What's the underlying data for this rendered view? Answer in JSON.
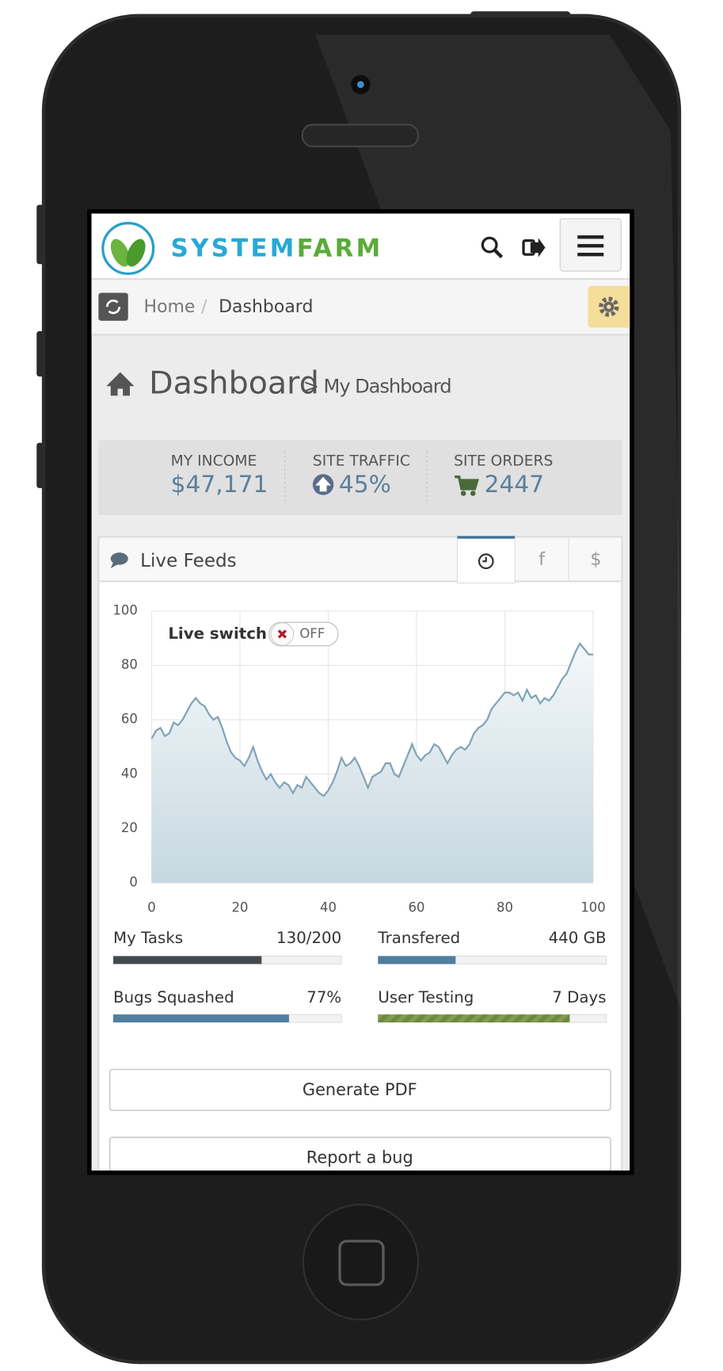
{
  "header": {
    "brand": [
      "SYSTEM",
      "FARM"
    ]
  },
  "breadcrumb": [
    "Home",
    "Dashboard"
  ],
  "breadcrumb_separator": "/",
  "page_title": "Dashboard",
  "page_subtitle": "> My Dashboard",
  "stats": [
    {
      "label": "MY INCOME",
      "value": "$47,171"
    },
    {
      "label": "SITE TRAFFIC",
      "value": "45%"
    },
    {
      "label": "SITE ORDERS",
      "value": "2447"
    }
  ],
  "panel": {
    "title": "Live Feeds",
    "tabs": [
      "f",
      "$"
    ]
  },
  "chart_data": {
    "type": "area",
    "x": [
      0,
      1,
      2,
      3,
      4,
      5,
      6,
      7,
      8,
      9,
      10,
      11,
      12,
      13,
      14,
      15,
      16,
      17,
      18,
      19,
      20,
      21,
      22,
      23,
      24,
      25,
      26,
      27,
      28,
      29,
      30,
      31,
      32,
      33,
      34,
      35,
      36,
      37,
      38,
      39,
      40,
      41,
      42,
      43,
      44,
      45,
      46,
      47,
      48,
      49,
      50,
      51,
      52,
      53,
      54,
      55,
      56,
      57,
      58,
      59,
      60,
      61,
      62,
      63,
      64,
      65,
      66,
      67,
      68,
      69,
      70,
      71,
      72,
      73,
      74,
      75,
      76,
      77,
      78,
      79,
      80,
      81,
      82,
      83,
      84,
      85,
      86,
      87,
      88,
      89,
      90,
      91,
      92,
      93,
      94,
      95,
      96,
      97,
      98,
      99,
      100
    ],
    "values": [
      53,
      56,
      57,
      54,
      55,
      59,
      58,
      60,
      63,
      66,
      68,
      66,
      65,
      62,
      60,
      61,
      57,
      52,
      48,
      46,
      45,
      43,
      46,
      50,
      45,
      41,
      38,
      40,
      37,
      35,
      37,
      36,
      33,
      36,
      35,
      39,
      37,
      35,
      33,
      32,
      34,
      37,
      41,
      46,
      43,
      44,
      46,
      43,
      39,
      35,
      39,
      40,
      41,
      44,
      44,
      40,
      39,
      43,
      47,
      51,
      47,
      45,
      47,
      48,
      51,
      50,
      47,
      44,
      47,
      49,
      50,
      49,
      51,
      55,
      57,
      58,
      60,
      64,
      66,
      68,
      70,
      70,
      69,
      70,
      67,
      71,
      68,
      69,
      66,
      68,
      67,
      69,
      72,
      75,
      77,
      81,
      85,
      88,
      86,
      84,
      84
    ],
    "xlim": [
      0,
      100
    ],
    "ylim": [
      0,
      100
    ],
    "xticks": [
      0,
      20,
      40,
      60,
      80,
      100
    ],
    "yticks": [
      0,
      20,
      40,
      60,
      80,
      100
    ],
    "grid": true,
    "color": "#7fa3b8",
    "annotation": "Live switch",
    "switch_state": "OFF"
  },
  "progress": [
    {
      "label": "My Tasks",
      "text": "130/200",
      "percent": 65,
      "color": "#454a4d"
    },
    {
      "label": "Transfered",
      "text": "440 GB",
      "percent": 34,
      "color": "#4f7fa0"
    },
    {
      "label": "Bugs Squashed",
      "text": "77%",
      "percent": 77,
      "color": "#4f7fa0"
    },
    {
      "label": "User Testing",
      "text": "7 Days",
      "percent": 84,
      "color": "#6b8a3a"
    }
  ],
  "buttons": [
    "Generate PDF",
    "Report a bug"
  ]
}
